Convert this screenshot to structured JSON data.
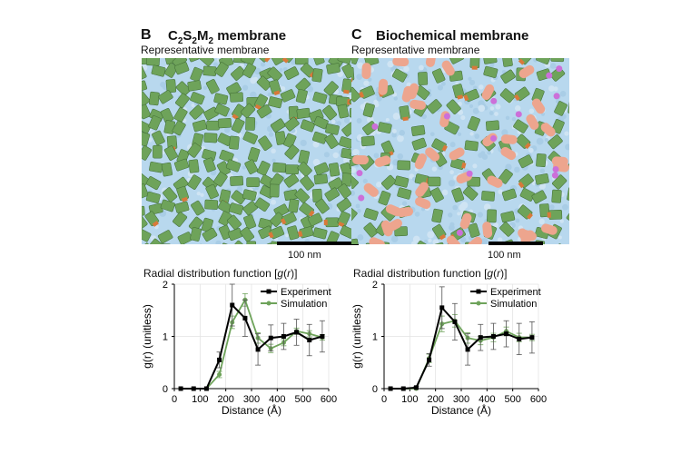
{
  "panels": [
    {
      "letter": "B",
      "title_main": "C",
      "title_sub1": "2",
      "title_mid1": "S",
      "title_sub2": "2",
      "title_mid2": "M",
      "title_sub3": "2",
      "title_rest": " membrane",
      "subtitle": "Representative membrane",
      "scale_label": "100 nm",
      "gr_title_prefix": "Radial distribution function [",
      "gr_title_italic": "g",
      "gr_title_mid": "(",
      "gr_title_italic2": "r",
      "gr_title_suffix": ")]",
      "colors": {
        "protein": "#6ea35a",
        "accent": "#d9793a",
        "lipid": "#b8d8ee"
      }
    },
    {
      "letter": "C",
      "title_text": "Biochemical membrane",
      "subtitle": "Representative membrane",
      "scale_label": "100 nm",
      "gr_title_prefix": "Radial distribution function [",
      "gr_title_italic": "g",
      "gr_title_mid": "(",
      "gr_title_italic2": "r",
      "gr_title_suffix": ")]",
      "colors": {
        "protein": "#6ea35a",
        "accent": "#d9793a",
        "pink": "#eda58e",
        "magenta": "#cc6fd9",
        "lipid": "#b8d8ee"
      }
    }
  ],
  "chart_data": [
    {
      "type": "line",
      "xlabel": "Distance (Å)",
      "ylabel": "g(r) (unitless)",
      "xlim": [
        0,
        600
      ],
      "ylim": [
        0,
        2
      ],
      "xticks": [
        0,
        100,
        200,
        300,
        400,
        500,
        600
      ],
      "yticks": [
        0,
        1,
        2
      ],
      "grid": true,
      "legend_position": "top-right",
      "series": [
        {
          "name": "Experiment",
          "color": "#000000",
          "x": [
            25,
            75,
            125,
            175,
            225,
            275,
            325,
            375,
            425,
            475,
            525,
            575
          ],
          "y": [
            0,
            0,
            0,
            0.55,
            1.6,
            1.35,
            0.75,
            0.97,
            1.0,
            1.08,
            0.93,
            1.0
          ],
          "err": [
            0,
            0,
            0,
            0.15,
            0.4,
            0.35,
            0.3,
            0.25,
            0.25,
            0.25,
            0.3,
            0.3
          ]
        },
        {
          "name": "Simulation",
          "color": "#6ea35a",
          "x": [
            25,
            75,
            125,
            175,
            225,
            275,
            325,
            375,
            425,
            475,
            525,
            575
          ],
          "y": [
            0,
            0,
            0,
            0.27,
            1.27,
            1.7,
            0.97,
            0.77,
            0.88,
            1.1,
            1.05,
            0.98
          ],
          "err": [
            0,
            0,
            0,
            0.06,
            0.12,
            0.12,
            0.1,
            0.08,
            0.06,
            0.06,
            0.06,
            0.05
          ]
        }
      ]
    },
    {
      "type": "line",
      "xlabel": "Distance (Å)",
      "ylabel": "g(r) (unitless)",
      "xlim": [
        0,
        600
      ],
      "ylim": [
        0,
        2
      ],
      "xticks": [
        0,
        100,
        200,
        300,
        400,
        500,
        600
      ],
      "yticks": [
        0,
        1,
        2
      ],
      "grid": true,
      "legend_position": "top-right",
      "series": [
        {
          "name": "Experiment",
          "color": "#000000",
          "x": [
            25,
            75,
            125,
            175,
            225,
            275,
            325,
            375,
            425,
            475,
            525,
            575
          ],
          "y": [
            0,
            0,
            0.02,
            0.55,
            1.55,
            1.28,
            0.75,
            0.98,
            1.0,
            1.05,
            0.95,
            0.98
          ],
          "err": [
            0,
            0,
            0.02,
            0.12,
            0.4,
            0.35,
            0.3,
            0.25,
            0.25,
            0.25,
            0.3,
            0.3
          ]
        },
        {
          "name": "Simulation",
          "color": "#6ea35a",
          "x": [
            25,
            75,
            125,
            175,
            225,
            275,
            325,
            375,
            425,
            475,
            525,
            575
          ],
          "y": [
            0,
            0,
            0,
            0.58,
            1.24,
            1.3,
            0.97,
            0.92,
            0.98,
            1.1,
            0.98,
            0.98
          ],
          "err": [
            0,
            0,
            0,
            0.08,
            0.15,
            0.12,
            0.1,
            0.08,
            0.08,
            0.08,
            0.08,
            0.06
          ]
        }
      ]
    }
  ]
}
